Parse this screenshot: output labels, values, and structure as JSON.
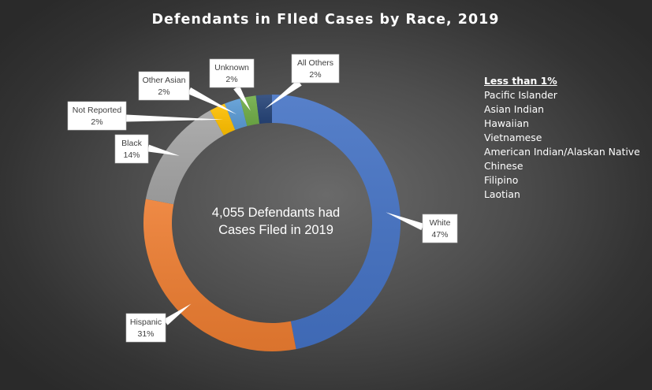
{
  "chart_data": {
    "type": "pie",
    "title": "Defendants  in  FIled  Cases  by  Race,   2019",
    "center_label": [
      "4,055 Defendants had",
      "Cases Filed in 2019"
    ],
    "categories": [
      "White",
      "Hispanic",
      "Black",
      "Not Reported",
      "Other Asian",
      "Unknown",
      "All Others"
    ],
    "values": [
      47,
      31,
      14,
      2,
      2,
      2,
      2
    ],
    "value_labels": [
      "47%",
      "31%",
      "14%",
      "2%",
      "2%",
      "2%",
      "2%"
    ],
    "colors": [
      "#4472c4",
      "#ed7d31",
      "#a5a5a5",
      "#ffc000",
      "#5b9bd5",
      "#70ad47",
      "#264478"
    ],
    "legend": "none",
    "side_note": {
      "heading": "Less than 1%",
      "items": [
        "Pacific Islander",
        "Asian Indian",
        "Hawaiian",
        "Vietnamese",
        "American Indian/Alaskan Native",
        "Chinese",
        "Filipino",
        "Laotian"
      ]
    }
  }
}
